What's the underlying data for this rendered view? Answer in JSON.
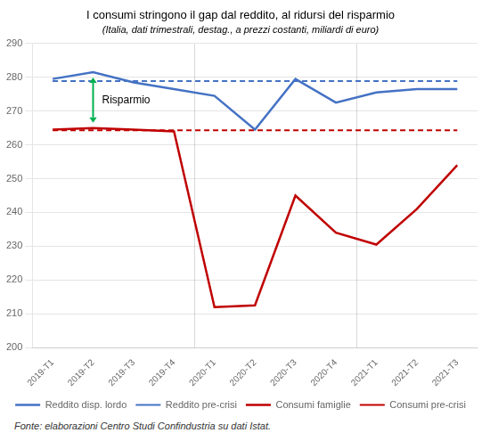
{
  "chart_data": {
    "type": "line",
    "title": "I consumi stringono il gap dal reddito, al ridursi del risparmio",
    "subtitle": "(Italia, dati trimestrali, destag., a prezzi costanti, miliardi di euro)",
    "footnote": "Fonte: elaborazioni Centro Studi Confindustria su dati Istat.",
    "categories": [
      "2019-T1",
      "2019-T2",
      "2019-T3",
      "2019-T4",
      "2020-T1",
      "2020-T2",
      "2020-T3",
      "2020-T4",
      "2021-T1",
      "2021-T2",
      "2021-T3"
    ],
    "series": [
      {
        "name": "Reddito disp. lordo",
        "color": "#4472C4",
        "line_style": "solid",
        "values": [
          279.5,
          281.5,
          278.5,
          276.5,
          274.5,
          264.5,
          279.5,
          272.5,
          275.5,
          276.5,
          276.5
        ]
      },
      {
        "name": "Reddito pre-crisi",
        "color": "#4472C4",
        "line_style": "dashed",
        "values": [
          278.9,
          278.9,
          278.9,
          278.9,
          278.9,
          278.9,
          278.9,
          278.9,
          278.9,
          278.9,
          278.9
        ]
      },
      {
        "name": "Consumi famiglie",
        "color": "#C00000",
        "line_style": "solid",
        "values": [
          264.5,
          265.0,
          264.5,
          264.0,
          212.0,
          212.5,
          245.0,
          234.0,
          230.5,
          241.0,
          254.0
        ]
      },
      {
        "name": "Consumi pre-crisi",
        "color": "#C00000",
        "line_style": "dashed",
        "values": [
          264.3,
          264.3,
          264.3,
          264.3,
          264.3,
          264.3,
          264.3,
          264.3,
          264.3,
          264.3,
          264.3
        ]
      }
    ],
    "ylim": [
      200,
      290
    ],
    "yticks": [
      200,
      210,
      220,
      230,
      240,
      250,
      260,
      270,
      280,
      290
    ],
    "grid": true,
    "legend": "bottom",
    "annotations": [
      {
        "text": "Risparmio",
        "x": "2019-T2",
        "y_top": 281.5,
        "y_bottom": 265.0,
        "color": "#00B050"
      }
    ]
  }
}
